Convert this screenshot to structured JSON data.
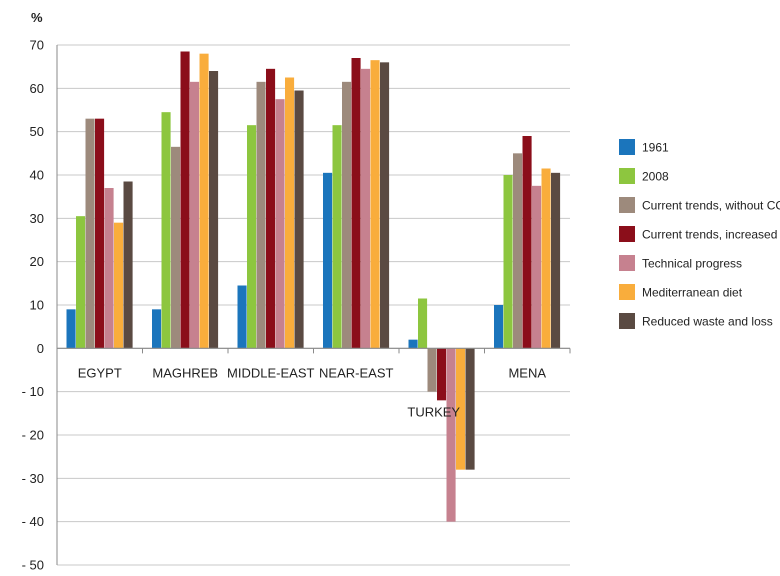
{
  "chart_data": {
    "type": "bar",
    "title": "",
    "xlabel": "",
    "ylabel": "%",
    "ylim": [
      -50,
      70
    ],
    "yticks": [
      70,
      60,
      50,
      40,
      30,
      20,
      10,
      0,
      -10,
      -20,
      -30,
      -40,
      -50
    ],
    "ytick_labels": [
      "70",
      "60",
      "50",
      "40",
      "30",
      "20",
      "10",
      "0",
      "- 10",
      "- 20",
      "- 30",
      "- 40",
      "- 50"
    ],
    "grid": true,
    "legend_position": "right",
    "categories": [
      "EGYPT",
      "MAGHREB",
      "MIDDLE-EAST",
      "NEAR-EAST",
      "TURKEY",
      "MENA"
    ],
    "series": [
      {
        "name": "1961",
        "color": "#1b75bc",
        "values": [
          9,
          9,
          14.5,
          40.5,
          2,
          10
        ]
      },
      {
        "name": "2008",
        "color": "#8dc63f",
        "values": [
          30.5,
          54.5,
          51.5,
          51.5,
          11.5,
          40
        ]
      },
      {
        "name": "Current trends, without CC",
        "color": "#9d8a7c",
        "values": [
          53,
          46.5,
          61.5,
          61.5,
          -10,
          45
        ]
      },
      {
        "name": "Current trends, increased CC",
        "color": "#8b0e1a",
        "values": [
          53,
          68.5,
          64.5,
          67,
          -12,
          49
        ]
      },
      {
        "name": "Technical progress",
        "color": "#c6818f",
        "values": [
          37,
          61.5,
          57.5,
          64.5,
          -40,
          37.5
        ]
      },
      {
        "name": "Mediterranean diet",
        "color": "#f9ad3c",
        "values": [
          29,
          68,
          62.5,
          66.5,
          -28,
          41.5
        ]
      },
      {
        "name": "Reduced waste and loss",
        "color": "#5a4a42",
        "values": [
          38.5,
          64,
          59.5,
          66,
          -28,
          40.5
        ]
      }
    ]
  }
}
